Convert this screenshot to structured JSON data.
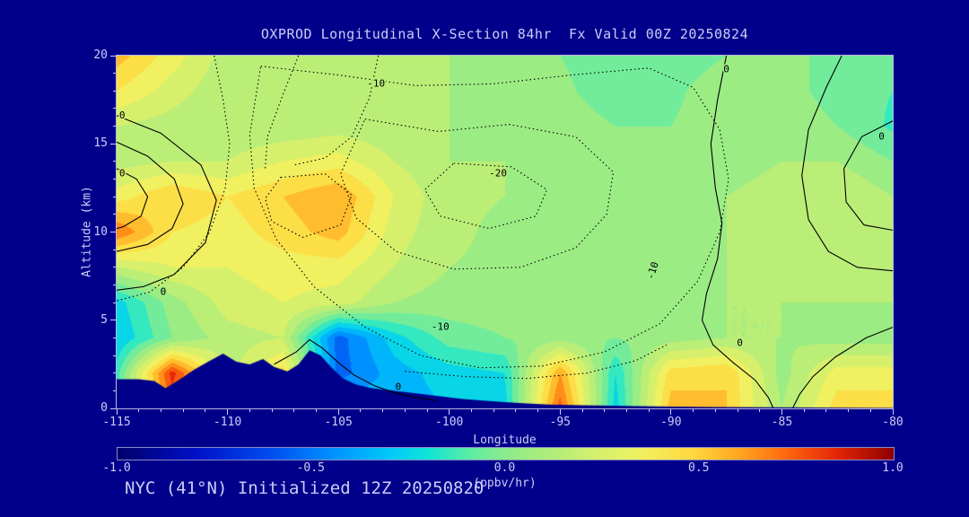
{
  "colors": {
    "background": "#00008B",
    "text": "#CCCCF8",
    "frame": "#B8B8E0",
    "contour": "#000000"
  },
  "footer": {
    "text": "NYC (41°N) Initialized 12Z 20250820"
  },
  "chart_data": {
    "type": "heatmap",
    "title": "OXPROD Longitudinal X-Section 84hr  Fx Valid 00Z 20250824",
    "xlabel": "Longitude",
    "ylabel": "Altitude (km)",
    "xlim": [
      -115,
      -80
    ],
    "ylim": [
      0,
      20
    ],
    "x_ticks": [
      -115,
      -110,
      -105,
      -100,
      -95,
      -90,
      -85,
      -80
    ],
    "y_ticks": [
      0,
      5,
      10,
      15,
      20
    ],
    "x_minor_step": 1,
    "y_minor_step": 1,
    "colorbar": {
      "min": -1.0,
      "max": 1.0,
      "tick_labels": [
        "-1.0",
        "-0.5",
        "0.0",
        "0.5",
        "1.0"
      ],
      "tick_values": [
        -1.0,
        -0.5,
        0.0,
        0.5,
        1.0
      ],
      "units": "(ppbv/hr)",
      "stops": [
        {
          "v": -1.0,
          "c": "#00006B"
        },
        {
          "v": -0.8,
          "c": "#0010C8"
        },
        {
          "v": -0.6,
          "c": "#0050F0"
        },
        {
          "v": -0.45,
          "c": "#0090FF"
        },
        {
          "v": -0.3,
          "c": "#00C8F8"
        },
        {
          "v": -0.2,
          "c": "#10E4D8"
        },
        {
          "v": -0.1,
          "c": "#58ECA8"
        },
        {
          "v": 0.0,
          "c": "#8CEC8C"
        },
        {
          "v": 0.1,
          "c": "#ACEC7C"
        },
        {
          "v": 0.22,
          "c": "#D0F070"
        },
        {
          "v": 0.35,
          "c": "#F0F060"
        },
        {
          "v": 0.48,
          "c": "#FFD840"
        },
        {
          "v": 0.6,
          "c": "#FFA820"
        },
        {
          "v": 0.72,
          "c": "#FF6A10"
        },
        {
          "v": 0.85,
          "c": "#E62808"
        },
        {
          "v": 1.0,
          "c": "#900000"
        }
      ]
    },
    "grid": {
      "lons": [
        -115,
        -112.5,
        -110,
        -107.5,
        -105,
        -102.5,
        -100,
        -97.5,
        -95,
        -92.5,
        -90,
        -87.5,
        -85,
        -82.5,
        -80
      ],
      "alts": [
        0,
        2,
        4,
        6,
        8,
        10,
        12,
        14,
        16,
        18,
        20
      ],
      "values": [
        [
          -0.1,
          0.7,
          0.2,
          0.4,
          -0.3,
          -0.35,
          -0.3,
          -0.25,
          0.75,
          -0.25,
          0.55,
          0.5,
          0.1,
          0.45,
          0.45
        ],
        [
          -0.15,
          0.85,
          0.15,
          0.45,
          -0.55,
          -0.35,
          -0.25,
          -0.2,
          0.6,
          -0.2,
          0.45,
          0.5,
          0.05,
          0.35,
          0.35
        ],
        [
          -0.3,
          0.0,
          0.15,
          0.2,
          -0.55,
          -0.25,
          -0.05,
          0.0,
          0.05,
          0.0,
          0.05,
          0.1,
          0.1,
          0.05,
          0.05
        ],
        [
          -0.25,
          0.05,
          0.25,
          0.3,
          0.25,
          0.1,
          0.05,
          0.05,
          0.05,
          0.05,
          0.05,
          0.1,
          0.1,
          0.1,
          0.1
        ],
        [
          0.2,
          0.3,
          0.3,
          0.35,
          0.35,
          0.2,
          0.1,
          0.08,
          0.06,
          0.05,
          0.05,
          0.1,
          0.12,
          0.15,
          0.1
        ],
        [
          0.7,
          0.4,
          0.35,
          0.45,
          0.55,
          0.25,
          0.12,
          0.08,
          0.06,
          0.05,
          0.05,
          0.1,
          0.15,
          0.2,
          0.1
        ],
        [
          0.35,
          0.5,
          0.4,
          0.5,
          0.6,
          0.3,
          0.12,
          0.1,
          0.08,
          0.05,
          0.05,
          0.1,
          0.15,
          0.2,
          0.1
        ],
        [
          0.15,
          0.2,
          0.2,
          0.3,
          0.35,
          0.2,
          0.1,
          0.1,
          0.08,
          0.05,
          0.02,
          0.05,
          0.1,
          0.1,
          0.0
        ],
        [
          0.2,
          0.15,
          0.12,
          0.12,
          0.15,
          0.12,
          0.1,
          0.08,
          0.05,
          0.0,
          0.0,
          0.05,
          0.08,
          0.0,
          -0.12
        ],
        [
          0.4,
          0.25,
          0.12,
          0.1,
          0.12,
          0.12,
          0.1,
          0.06,
          0.02,
          -0.05,
          -0.02,
          0.05,
          0.05,
          -0.05,
          -0.1
        ],
        [
          0.55,
          0.35,
          0.15,
          0.1,
          0.1,
          0.1,
          0.1,
          0.05,
          0.0,
          -0.05,
          -0.05,
          0.0,
          0.05,
          -0.05,
          -0.1
        ]
      ]
    },
    "terrain": [
      [
        -115,
        1.65
      ],
      [
        -114,
        1.65
      ],
      [
        -113.3,
        1.55
      ],
      [
        -112.8,
        1.15
      ],
      [
        -112.2,
        1.6
      ],
      [
        -111.5,
        2.2
      ],
      [
        -110.8,
        2.7
      ],
      [
        -110.2,
        3.1
      ],
      [
        -109.6,
        2.65
      ],
      [
        -109,
        2.5
      ],
      [
        -108.4,
        2.8
      ],
      [
        -107.9,
        2.35
      ],
      [
        -107.3,
        2.1
      ],
      [
        -106.8,
        2.5
      ],
      [
        -106.3,
        3.3
      ],
      [
        -105.8,
        3.0
      ],
      [
        -105.3,
        2.3
      ],
      [
        -104.8,
        1.7
      ],
      [
        -104.2,
        1.35
      ],
      [
        -103.5,
        1.15
      ],
      [
        -102.5,
        1.0
      ],
      [
        -101.5,
        0.85
      ],
      [
        -100.5,
        0.7
      ],
      [
        -99.5,
        0.55
      ],
      [
        -98.5,
        0.45
      ],
      [
        -97.5,
        0.35
      ],
      [
        -96.5,
        0.28
      ],
      [
        -95.5,
        0.22
      ],
      [
        -94,
        0.18
      ],
      [
        -92,
        0.14
      ],
      [
        -90,
        0.1
      ],
      [
        -88,
        0.08
      ],
      [
        -86,
        0.06
      ],
      [
        -84,
        0.05
      ],
      [
        -82,
        0.04
      ],
      [
        -80,
        0.03
      ]
    ],
    "contours": [
      {
        "style": "solid",
        "label": "0",
        "closed": false,
        "points": [
          [
            -115,
            16.6
          ],
          [
            -113.0,
            15.6
          ],
          [
            -111.2,
            13.8
          ],
          [
            -110.5,
            11.8
          ],
          [
            -111.0,
            9.4
          ],
          [
            -112.4,
            7.6
          ],
          [
            -113.8,
            6.9
          ],
          [
            -115,
            6.7
          ]
        ]
      },
      {
        "style": "solid",
        "label": "0",
        "closed": false,
        "points": [
          [
            -115,
            15.1
          ],
          [
            -113.6,
            14.3
          ],
          [
            -112.4,
            13.0
          ],
          [
            -112.0,
            11.6
          ],
          [
            -112.5,
            10.2
          ],
          [
            -113.6,
            9.3
          ],
          [
            -115,
            8.9
          ]
        ]
      },
      {
        "style": "solid",
        "label": "0",
        "closed": false,
        "points": [
          [
            -115,
            13.6
          ],
          [
            -114.1,
            13.0
          ],
          [
            -113.6,
            12.0
          ],
          [
            -113.9,
            10.9
          ],
          [
            -114.7,
            10.3
          ],
          [
            -115,
            10.2
          ]
        ]
      },
      {
        "style": "solid",
        "label": "0",
        "closed": false,
        "points": [
          [
            -87.5,
            20
          ],
          [
            -87.9,
            17.5
          ],
          [
            -88.2,
            15
          ],
          [
            -88.0,
            12.5
          ],
          [
            -87.7,
            10.5
          ],
          [
            -87.9,
            8.5
          ],
          [
            -88.4,
            6.5
          ],
          [
            -88.6,
            5
          ],
          [
            -88.1,
            3.6
          ],
          [
            -87.2,
            2.6
          ],
          [
            -86.2,
            1.6
          ],
          [
            -85.6,
            0.6
          ],
          [
            -85.4,
            0.05
          ]
        ]
      },
      {
        "style": "solid",
        "label": "0",
        "closed": false,
        "points": [
          [
            -82.3,
            20
          ],
          [
            -83.0,
            18.2
          ],
          [
            -83.8,
            15.8
          ],
          [
            -84.1,
            13.2
          ],
          [
            -83.8,
            10.7
          ],
          [
            -82.9,
            8.9
          ],
          [
            -81.6,
            8.0
          ],
          [
            -80,
            7.8
          ]
        ]
      },
      {
        "style": "solid",
        "label": "0",
        "closed": false,
        "points": [
          [
            -80,
            16.3
          ],
          [
            -81.4,
            15.4
          ],
          [
            -82.2,
            13.6
          ],
          [
            -82.1,
            11.7
          ],
          [
            -81.3,
            10.4
          ],
          [
            -80,
            10.1
          ]
        ]
      },
      {
        "style": "solid",
        "label": "0",
        "closed": false,
        "points": [
          [
            -107.9,
            2.5
          ],
          [
            -106.9,
            3.2
          ],
          [
            -106.3,
            3.9
          ],
          [
            -105.7,
            3.4
          ],
          [
            -105.0,
            2.6
          ],
          [
            -104.3,
            1.9
          ],
          [
            -103.4,
            1.3
          ],
          [
            -102.4,
            0.85
          ],
          [
            -101.4,
            0.6
          ],
          [
            -100.6,
            0.45
          ]
        ]
      },
      {
        "style": "solid",
        "label": "0",
        "closed": false,
        "points": [
          [
            -80,
            4.6
          ],
          [
            -81.2,
            4.0
          ],
          [
            -82.6,
            2.9
          ],
          [
            -83.6,
            1.8
          ],
          [
            -84.2,
            0.8
          ],
          [
            -84.5,
            0.05
          ]
        ]
      },
      {
        "style": "dotted",
        "label": "-10",
        "closed": true,
        "points": [
          [
            -108.5,
            19.4
          ],
          [
            -105,
            18.9
          ],
          [
            -101.5,
            18.3
          ],
          [
            -98,
            18.4
          ],
          [
            -94.5,
            18.9
          ],
          [
            -91,
            19.3
          ],
          [
            -89,
            18.2
          ],
          [
            -87.8,
            15.8
          ],
          [
            -87.4,
            13
          ],
          [
            -87.8,
            10
          ],
          [
            -88.8,
            7.2
          ],
          [
            -90.5,
            4.8
          ],
          [
            -93,
            3.2
          ],
          [
            -95.8,
            2.4
          ],
          [
            -98.6,
            2.3
          ],
          [
            -101.3,
            3.0
          ],
          [
            -103.8,
            4.6
          ],
          [
            -106.1,
            6.9
          ],
          [
            -107.8,
            9.6
          ],
          [
            -108.8,
            12.5
          ],
          [
            -109.0,
            15.5
          ]
        ]
      },
      {
        "style": "dotted",
        "label": "-20",
        "closed": true,
        "points": [
          [
            -103.8,
            16.4
          ],
          [
            -100.5,
            15.7
          ],
          [
            -97.3,
            16.1
          ],
          [
            -94.3,
            15.4
          ],
          [
            -92.6,
            13.4
          ],
          [
            -92.9,
            11.0
          ],
          [
            -94.3,
            9.1
          ],
          [
            -96.8,
            8.0
          ],
          [
            -99.8,
            7.9
          ],
          [
            -102.4,
            8.9
          ],
          [
            -104.2,
            10.8
          ],
          [
            -104.9,
            13.3
          ]
        ]
      },
      {
        "style": "dotted",
        "label": "-20",
        "closed": true,
        "points": [
          [
            -99.8,
            13.9
          ],
          [
            -97.2,
            13.7
          ],
          [
            -95.6,
            12.4
          ],
          [
            -96.1,
            10.9
          ],
          [
            -98.2,
            10.2
          ],
          [
            -100.4,
            10.9
          ],
          [
            -101.1,
            12.4
          ]
        ]
      },
      {
        "style": "dotted",
        "label": "-10",
        "closed": true,
        "points": [
          [
            -107.6,
            13.1
          ],
          [
            -105.6,
            13.3
          ],
          [
            -104.4,
            12.1
          ],
          [
            -104.9,
            10.4
          ],
          [
            -106.6,
            9.7
          ],
          [
            -108.0,
            10.6
          ],
          [
            -108.3,
            11.9
          ]
        ]
      },
      {
        "style": "dotted",
        "label": "-10",
        "closed": false,
        "points": [
          [
            -106.8,
            20
          ],
          [
            -107.5,
            17.8
          ],
          [
            -108.2,
            15.4
          ],
          [
            -108.3,
            13.6
          ]
        ]
      },
      {
        "style": "dotted",
        "label": "-10",
        "closed": false,
        "points": [
          [
            -103.2,
            20
          ],
          [
            -103.6,
            17.6
          ],
          [
            -104.4,
            15.4
          ],
          [
            -105.6,
            14.2
          ],
          [
            -107.0,
            13.8
          ]
        ]
      },
      {
        "style": "dotted",
        "label": "-10",
        "closed": false,
        "points": [
          [
            -110.6,
            20
          ],
          [
            -110.2,
            17.5
          ],
          [
            -109.9,
            15.0
          ],
          [
            -110.1,
            12.5
          ],
          [
            -110.8,
            10.0
          ],
          [
            -112.0,
            8.0
          ],
          [
            -113.5,
            6.6
          ],
          [
            -115,
            6.1
          ]
        ]
      },
      {
        "style": "dotted",
        "label": "-10",
        "closed": false,
        "points": [
          [
            -102.0,
            2.1
          ],
          [
            -99.3,
            1.8
          ],
          [
            -96.5,
            1.7
          ],
          [
            -93.8,
            2.0
          ],
          [
            -91.6,
            2.7
          ],
          [
            -90.2,
            3.6
          ]
        ]
      }
    ],
    "contour_labels": [
      {
        "text": "0",
        "lon": -114.75,
        "alt": 16.6,
        "rot": 0
      },
      {
        "text": "0",
        "lon": -114.75,
        "alt": 13.3,
        "rot": 0
      },
      {
        "text": "0",
        "lon": -112.9,
        "alt": 6.6,
        "rot": 0
      },
      {
        "text": "-10",
        "lon": -103.3,
        "alt": 18.4,
        "rot": 0
      },
      {
        "text": "-20",
        "lon": -97.8,
        "alt": 13.3,
        "rot": 0
      },
      {
        "text": "-10",
        "lon": -100.4,
        "alt": 4.6,
        "rot": 0
      },
      {
        "text": "-10",
        "lon": -90.8,
        "alt": 7.8,
        "rot": -72
      },
      {
        "text": "0",
        "lon": -87.5,
        "alt": 19.2,
        "rot": 0
      },
      {
        "text": "0",
        "lon": -86.9,
        "alt": 3.7,
        "rot": 0
      },
      {
        "text": "0",
        "lon": -102.3,
        "alt": 1.2,
        "rot": 0
      },
      {
        "text": "0",
        "lon": -80.5,
        "alt": 15.4,
        "rot": 0
      }
    ]
  }
}
